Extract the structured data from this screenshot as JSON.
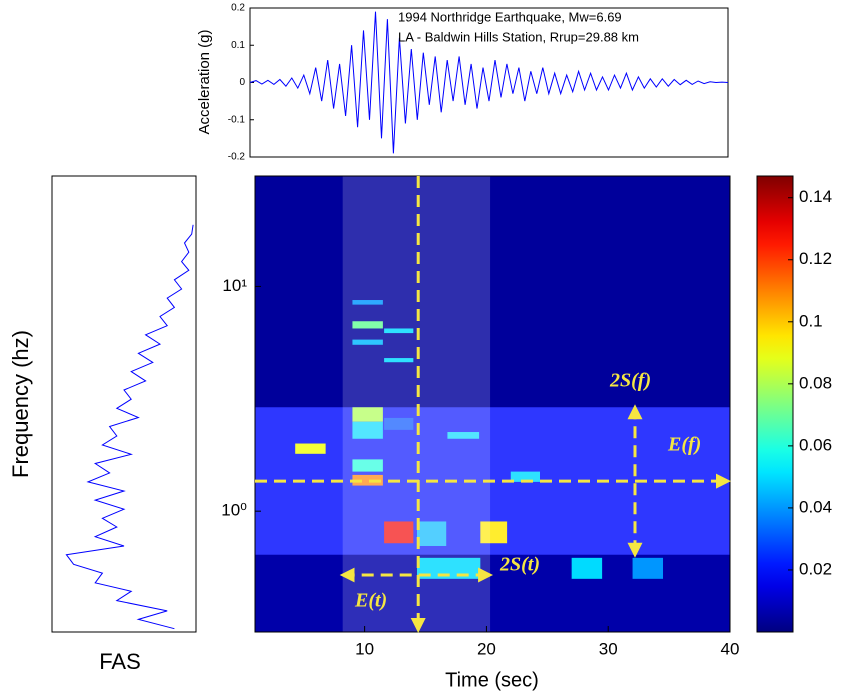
{
  "chart_data": [
    {
      "type": "line",
      "title_lines": [
        "1994 Northridge Earthquake, Mw=6.69",
        "LA - Baldwin Hills Station, Rrup=29.88 km"
      ],
      "ylabel": "Acceleration (g)",
      "color": "#0000ff",
      "xlim": [
        0,
        40
      ],
      "ylim": [
        -0.2,
        0.2
      ],
      "yticks": [
        -0.2,
        -0.1,
        0,
        0.1,
        0.2
      ],
      "x": [
        0,
        0.5,
        1,
        1.5,
        2,
        2.5,
        3,
        3.5,
        4,
        4.5,
        5,
        5.5,
        6,
        6.5,
        7,
        7.5,
        8,
        8.5,
        9,
        9.5,
        10,
        10.5,
        11,
        11.5,
        12,
        12.5,
        13,
        13.5,
        14,
        14.5,
        15,
        15.5,
        16,
        16.5,
        17,
        17.5,
        18,
        18.5,
        19,
        19.5,
        20,
        20.5,
        21,
        21.5,
        22,
        22.5,
        23,
        23.5,
        24,
        24.5,
        25,
        25.5,
        26,
        26.5,
        27,
        27.5,
        28,
        28.5,
        29,
        29.5,
        30,
        30.5,
        31,
        31.5,
        32,
        32.5,
        33,
        33.5,
        34,
        34.5,
        35,
        35.5,
        36,
        36.5,
        37,
        37.5,
        38,
        38.5,
        39,
        39.5,
        40
      ],
      "values": [
        0,
        0.005,
        -0.004,
        0.006,
        -0.005,
        0.008,
        -0.01,
        0.012,
        -0.015,
        0.02,
        -0.03,
        0.04,
        -0.05,
        0.06,
        -0.07,
        0.05,
        -0.09,
        0.1,
        -0.12,
        0.14,
        -0.1,
        0.19,
        -0.15,
        0.17,
        -0.19,
        0.12,
        -0.11,
        0.09,
        -0.1,
        0.08,
        -0.06,
        0.07,
        -0.08,
        0.06,
        -0.05,
        0.07,
        -0.06,
        0.05,
        -0.07,
        0.04,
        -0.05,
        0.06,
        -0.04,
        0.05,
        -0.03,
        0.04,
        -0.05,
        0.03,
        -0.03,
        0.04,
        -0.03,
        0.025,
        -0.03,
        0.02,
        -0.025,
        0.03,
        -0.02,
        0.025,
        -0.02,
        0.015,
        -0.02,
        0.02,
        -0.015,
        0.025,
        -0.02,
        0.015,
        -0.015,
        0.01,
        -0.012,
        0.01,
        -0.01,
        0.008,
        -0.006,
        0.006,
        -0.005,
        0.004,
        -0.003,
        0.002,
        0,
        0.001,
        0
      ]
    },
    {
      "type": "fas",
      "title": "FAS",
      "ylabel": "Frequency (hz)",
      "color": "#0000ff",
      "xlim": [
        0,
        1
      ],
      "ylim": [
        0.29,
        31
      ],
      "log_y": true,
      "frequencies": [
        0.3,
        0.33,
        0.36,
        0.4,
        0.44,
        0.48,
        0.53,
        0.58,
        0.64,
        0.7,
        0.77,
        0.85,
        0.93,
        1.02,
        1.12,
        1.23,
        1.35,
        1.48,
        1.63,
        1.79,
        1.97,
        2.16,
        2.38,
        2.61,
        2.87,
        3.15,
        3.46,
        3.8,
        4.18,
        4.59,
        5.04,
        5.54,
        6.09,
        6.69,
        7.35,
        8.07,
        8.87,
        9.74,
        10.7,
        11.8,
        12.9,
        14.2,
        15.6,
        17.1,
        18.8
      ],
      "values": [
        0.85,
        0.6,
        0.8,
        0.45,
        0.55,
        0.3,
        0.35,
        0.15,
        0.1,
        0.5,
        0.3,
        0.45,
        0.35,
        0.5,
        0.3,
        0.5,
        0.25,
        0.4,
        0.3,
        0.55,
        0.35,
        0.45,
        0.4,
        0.6,
        0.45,
        0.55,
        0.5,
        0.65,
        0.55,
        0.7,
        0.6,
        0.75,
        0.65,
        0.8,
        0.75,
        0.85,
        0.8,
        0.9,
        0.85,
        0.95,
        0.9,
        0.95,
        0.92,
        0.97,
        0.98
      ]
    },
    {
      "type": "heatmap",
      "xlabel": "Time (sec)",
      "colormap": "jet",
      "xlim": [
        1,
        40
      ],
      "xticks": [
        10,
        20,
        30,
        40
      ],
      "ylim": [
        0.29,
        31
      ],
      "log_y": true,
      "yticks": [
        {
          "value": 1,
          "label": "10⁰"
        },
        {
          "value": 10,
          "label": "10¹"
        }
      ],
      "clim": [
        0,
        0.147
      ],
      "cticks": [
        0.02,
        0.04,
        0.06,
        0.08,
        0.1,
        0.12,
        0.14
      ],
      "background_value": 0.004,
      "cells": [
        {
          "t": [
            1,
            40
          ],
          "f": [
            0.29,
            0.64
          ],
          "value": 0.006
        },
        {
          "t": [
            1,
            40
          ],
          "f": [
            0.64,
            2.9
          ],
          "value": 0.02
        },
        {
          "t": [
            4.3,
            6.8
          ],
          "f": [
            1.8,
            2.0
          ],
          "value": 0.09
        },
        {
          "t": [
            9,
            11.5
          ],
          "f": [
            2.5,
            2.9
          ],
          "value": 0.08
        },
        {
          "t": [
            9,
            11.5
          ],
          "f": [
            2.1,
            2.5
          ],
          "value": 0.05
        },
        {
          "t": [
            9,
            11.5
          ],
          "f": [
            1.5,
            1.7
          ],
          "value": 0.06
        },
        {
          "t": [
            9,
            11.5
          ],
          "f": [
            1.3,
            1.45
          ],
          "value": 0.11
        },
        {
          "t": [
            9,
            11.5
          ],
          "f": [
            6.5,
            7.0
          ],
          "value": 0.07
        },
        {
          "t": [
            9,
            11.5
          ],
          "f": [
            5.5,
            5.8
          ],
          "value": 0.045
        },
        {
          "t": [
            9,
            11.5
          ],
          "f": [
            8.3,
            8.7
          ],
          "value": 0.04
        },
        {
          "t": [
            11.6,
            14
          ],
          "f": [
            0.72,
            0.9
          ],
          "value": 0.13
        },
        {
          "t": [
            11.6,
            14
          ],
          "f": [
            6.2,
            6.5
          ],
          "value": 0.05
        },
        {
          "t": [
            11.6,
            14
          ],
          "f": [
            4.6,
            4.8
          ],
          "value": 0.05
        },
        {
          "t": [
            11.6,
            14
          ],
          "f": [
            2.3,
            2.6
          ],
          "value": 0.03
        },
        {
          "t": [
            14.3,
            16.7
          ],
          "f": [
            0.7,
            0.9
          ],
          "value": 0.045
        },
        {
          "t": [
            14.3,
            19.5
          ],
          "f": [
            0.5,
            0.62
          ],
          "value": 0.05
        },
        {
          "t": [
            16.8,
            19.4
          ],
          "f": [
            2.1,
            2.25
          ],
          "value": 0.05
        },
        {
          "t": [
            19.5,
            21.7
          ],
          "f": [
            0.72,
            0.9
          ],
          "value": 0.095
        },
        {
          "t": [
            22,
            24.4
          ],
          "f": [
            1.35,
            1.5
          ],
          "value": 0.05
        },
        {
          "t": [
            27,
            29.5
          ],
          "f": [
            0.5,
            0.62
          ],
          "value": 0.05
        },
        {
          "t": [
            32,
            34.5
          ],
          "f": [
            0.5,
            0.62
          ],
          "value": 0.04
        }
      ],
      "markers": {
        "E_t": 14.4,
        "E_f": 1.36,
        "S_t": [
          8.2,
          20.3
        ],
        "S_t_at_frequency": 0.52,
        "S_f": [
          0.64,
          2.9
        ],
        "S_f_at_time": 32.2
      },
      "annotations": [
        "E(t)",
        "2S(t)",
        "E(f)",
        "2S(f)"
      ]
    }
  ]
}
